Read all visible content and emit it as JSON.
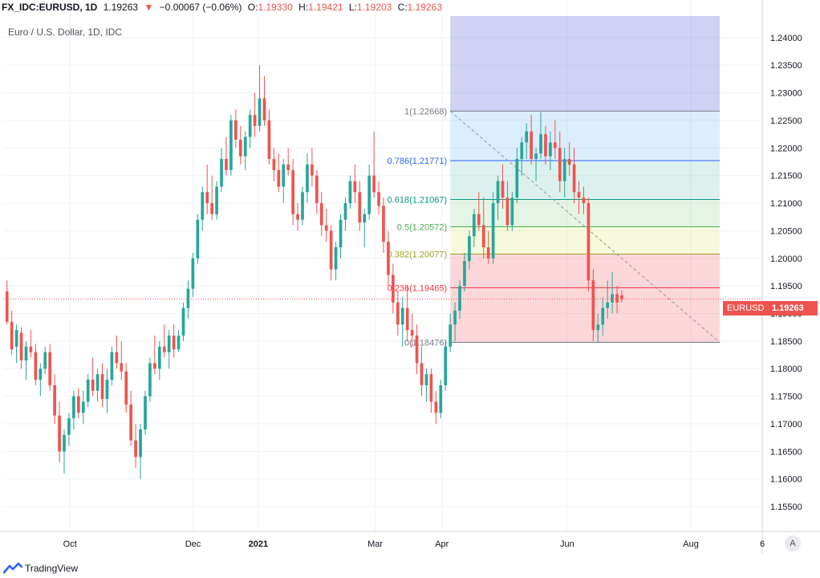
{
  "header": {
    "symbol": "FX_IDC:EURUSD, 1D",
    "last": "1.19263",
    "arrow": "▼",
    "change": "−0.00067 (−0.06%)",
    "o_label": "O:",
    "o_val": "1.19330",
    "h_label": "H:",
    "h_val": "1.19421",
    "l_label": "L:",
    "l_val": "1.19203",
    "c_label": "C:",
    "c_val": "1.19263",
    "subtitle": "Euro / U.S. Dollar, 1D, IDC"
  },
  "price_tag": {
    "symbol": "EURUSD",
    "value": "1.19263"
  },
  "auto_button": "A",
  "logo_text": "TradingView",
  "colors": {
    "up": "#26a69a",
    "down": "#ef5350",
    "grid": "#f0f3fa",
    "axis": "#131722"
  },
  "chart_data": {
    "type": "candlestick",
    "y_axis": {
      "range": [
        1.1505,
        1.2442
      ],
      "ticks": [
        "1.24000",
        "1.23500",
        "1.23000",
        "1.22500",
        "1.22000",
        "1.21500",
        "1.21000",
        "1.20500",
        "1.20000",
        "1.19500",
        "1.19000",
        "1.18500",
        "1.18000",
        "1.17500",
        "1.17000",
        "1.16500",
        "1.16000",
        "1.15500"
      ]
    },
    "x_axis": {
      "ticks": [
        {
          "label": "Oct",
          "t": 0.088
        },
        {
          "label": "Dec",
          "t": 0.25
        },
        {
          "label": "2021",
          "t": 0.336,
          "bold": true
        },
        {
          "label": "Mar",
          "t": 0.49
        },
        {
          "label": "Apr",
          "t": 0.578
        },
        {
          "label": "Jun",
          "t": 0.743
        },
        {
          "label": "Aug",
          "t": 0.906
        },
        {
          "label": "6",
          "t": 1.0
        }
      ]
    },
    "fibonacci": {
      "levels": [
        {
          "ratio": "1",
          "price": 1.22668,
          "label": "1(1.22668)",
          "color": "#787b86",
          "fill": "rgba(120,123,134,0.16)"
        },
        {
          "ratio": "0.786",
          "price": 1.21771,
          "label": "0.786(1.21771)",
          "color": "#2962ff",
          "fill": "rgba(33,150,243,0.16)"
        },
        {
          "ratio": "0.618",
          "price": 1.21067,
          "label": "0.618(1.21067)",
          "color": "#089981",
          "fill": "rgba(8,153,129,0.14)"
        },
        {
          "ratio": "0.5",
          "price": 1.20572,
          "label": "0.5(1.20572)",
          "color": "#4caf50",
          "fill": "rgba(76,175,80,0.14)"
        },
        {
          "ratio": "0.382",
          "price": 1.20077,
          "label": "0.382(1.20077)",
          "color": "#9ca31f",
          "fill": "rgba(205,220,57,0.18)"
        },
        {
          "ratio": "0.236",
          "price": 1.19465,
          "label": "0.236(1.19465)",
          "color": "#f23645",
          "fill": "rgba(242,54,69,0.20)"
        },
        {
          "ratio": "0",
          "price": 1.18476,
          "label": "0(1.18476)",
          "color": "#787b86",
          "fill": null
        }
      ],
      "extension_fill": "rgba(103,103,220,0.30)"
    },
    "candles_ohlc": [
      [
        1.194,
        1.196,
        1.188,
        1.1885
      ],
      [
        1.1885,
        1.1905,
        1.1825,
        1.1835
      ],
      [
        1.184,
        1.188,
        1.181,
        1.187
      ],
      [
        1.1865,
        1.1875,
        1.18,
        1.1815
      ],
      [
        1.1815,
        1.185,
        1.178,
        1.184
      ],
      [
        1.184,
        1.187,
        1.182,
        1.183
      ],
      [
        1.183,
        1.1845,
        1.177,
        1.178
      ],
      [
        1.178,
        1.181,
        1.175,
        1.18
      ],
      [
        1.18,
        1.184,
        1.179,
        1.183
      ],
      [
        1.183,
        1.1845,
        1.176,
        1.177
      ],
      [
        1.177,
        1.179,
        1.17,
        1.1715
      ],
      [
        1.1715,
        1.174,
        1.163,
        1.165
      ],
      [
        1.165,
        1.169,
        1.161,
        1.168
      ],
      [
        1.168,
        1.172,
        1.166,
        1.171
      ],
      [
        1.171,
        1.176,
        1.169,
        1.175
      ],
      [
        1.175,
        1.1765,
        1.171,
        1.172
      ],
      [
        1.172,
        1.176,
        1.17,
        1.174
      ],
      [
        1.174,
        1.179,
        1.173,
        1.178
      ],
      [
        1.178,
        1.182,
        1.175,
        1.176
      ],
      [
        1.176,
        1.18,
        1.174,
        1.179
      ],
      [
        1.179,
        1.181,
        1.173,
        1.1745
      ],
      [
        1.1745,
        1.18,
        1.172,
        1.178
      ],
      [
        1.178,
        1.184,
        1.177,
        1.183
      ],
      [
        1.183,
        1.186,
        1.18,
        1.181
      ],
      [
        1.181,
        1.185,
        1.178,
        1.1795
      ],
      [
        1.1795,
        1.181,
        1.172,
        1.1735
      ],
      [
        1.1735,
        1.176,
        1.166,
        1.167
      ],
      [
        1.167,
        1.17,
        1.162,
        1.164
      ],
      [
        1.164,
        1.17,
        1.16,
        1.169
      ],
      [
        1.169,
        1.176,
        1.168,
        1.175
      ],
      [
        1.175,
        1.182,
        1.174,
        1.181
      ],
      [
        1.181,
        1.186,
        1.179,
        1.18
      ],
      [
        1.18,
        1.185,
        1.178,
        1.184
      ],
      [
        1.184,
        1.188,
        1.182,
        1.183
      ],
      [
        1.183,
        1.187,
        1.18,
        1.186
      ],
      [
        1.186,
        1.188,
        1.182,
        1.1835
      ],
      [
        1.1835,
        1.187,
        1.183,
        1.186
      ],
      [
        1.186,
        1.192,
        1.185,
        1.191
      ],
      [
        1.191,
        1.196,
        1.189,
        1.1945
      ],
      [
        1.1945,
        1.201,
        1.193,
        1.2
      ],
      [
        1.2,
        1.208,
        1.199,
        1.207
      ],
      [
        1.207,
        1.213,
        1.205,
        1.212
      ],
      [
        1.212,
        1.217,
        1.208,
        1.21
      ],
      [
        1.21,
        1.215,
        1.207,
        1.208
      ],
      [
        1.208,
        1.214,
        1.207,
        1.213
      ],
      [
        1.213,
        1.22,
        1.212,
        1.218
      ],
      [
        1.218,
        1.222,
        1.215,
        1.216
      ],
      [
        1.216,
        1.226,
        1.215,
        1.225
      ],
      [
        1.225,
        1.227,
        1.22,
        1.2215
      ],
      [
        1.2215,
        1.224,
        1.217,
        1.2185
      ],
      [
        1.2185,
        1.223,
        1.216,
        1.222
      ],
      [
        1.222,
        1.227,
        1.22,
        1.226
      ],
      [
        1.226,
        1.23,
        1.222,
        1.224
      ],
      [
        1.224,
        1.235,
        1.223,
        1.229
      ],
      [
        1.229,
        1.233,
        1.224,
        1.225
      ],
      [
        1.225,
        1.227,
        1.217,
        1.218
      ],
      [
        1.218,
        1.22,
        1.214,
        1.216
      ],
      [
        1.216,
        1.219,
        1.212,
        1.213
      ],
      [
        1.213,
        1.218,
        1.21,
        1.217
      ],
      [
        1.217,
        1.22,
        1.215,
        1.216
      ],
      [
        1.216,
        1.218,
        1.206,
        1.208
      ],
      [
        1.208,
        1.21,
        1.205,
        1.207
      ],
      [
        1.207,
        1.213,
        1.206,
        1.212
      ],
      [
        1.212,
        1.219,
        1.21,
        1.217
      ],
      [
        1.217,
        1.22,
        1.213,
        1.215
      ],
      [
        1.215,
        1.216,
        1.208,
        1.21
      ],
      [
        1.21,
        1.212,
        1.204,
        1.206
      ],
      [
        1.206,
        1.209,
        1.203,
        1.205
      ],
      [
        1.205,
        1.206,
        1.196,
        1.198
      ],
      [
        1.198,
        1.203,
        1.196,
        1.202
      ],
      [
        1.202,
        1.208,
        1.2,
        1.207
      ],
      [
        1.207,
        1.211,
        1.205,
        1.21
      ],
      [
        1.21,
        1.215,
        1.209,
        1.214
      ],
      [
        1.214,
        1.217,
        1.21,
        1.212
      ],
      [
        1.212,
        1.214,
        1.205,
        1.2065
      ],
      [
        1.2065,
        1.209,
        1.202,
        1.208
      ],
      [
        1.208,
        1.217,
        1.207,
        1.215
      ],
      [
        1.215,
        1.223,
        1.211,
        1.212
      ],
      [
        1.212,
        1.214,
        1.208,
        1.2095
      ],
      [
        1.2095,
        1.211,
        1.201,
        1.203
      ],
      [
        1.203,
        1.205,
        1.195,
        1.197
      ],
      [
        1.197,
        1.199,
        1.19,
        1.192
      ],
      [
        1.192,
        1.194,
        1.186,
        1.188
      ],
      [
        1.188,
        1.193,
        1.184,
        1.191
      ],
      [
        1.191,
        1.195,
        1.185,
        1.187
      ],
      [
        1.187,
        1.19,
        1.184,
        1.186
      ],
      [
        1.186,
        1.188,
        1.179,
        1.181
      ],
      [
        1.181,
        1.184,
        1.175,
        1.177
      ],
      [
        1.177,
        1.18,
        1.174,
        1.179
      ],
      [
        1.179,
        1.18,
        1.172,
        1.174
      ],
      [
        1.174,
        1.176,
        1.17,
        1.172
      ],
      [
        1.172,
        1.178,
        1.171,
        1.177
      ],
      [
        1.177,
        1.185,
        1.176,
        1.184
      ],
      [
        1.184,
        1.19,
        1.183,
        1.188
      ],
      [
        1.188,
        1.192,
        1.185,
        1.1905
      ],
      [
        1.1905,
        1.196,
        1.189,
        1.195
      ],
      [
        1.195,
        1.201,
        1.194,
        1.1995
      ],
      [
        1.1995,
        1.205,
        1.198,
        1.204
      ],
      [
        1.204,
        1.209,
        1.202,
        1.208
      ],
      [
        1.208,
        1.212,
        1.205,
        1.206
      ],
      [
        1.206,
        1.211,
        1.2,
        1.202
      ],
      [
        1.202,
        1.205,
        1.199,
        1.2
      ],
      [
        1.2,
        1.212,
        1.199,
        1.21
      ],
      [
        1.21,
        1.215,
        1.207,
        1.214
      ],
      [
        1.214,
        1.217,
        1.209,
        1.211
      ],
      [
        1.211,
        1.214,
        1.205,
        1.206
      ],
      [
        1.206,
        1.212,
        1.205,
        1.211
      ],
      [
        1.211,
        1.22,
        1.21,
        1.218
      ],
      [
        1.218,
        1.222,
        1.215,
        1.221
      ],
      [
        1.221,
        1.2245,
        1.218,
        1.223
      ],
      [
        1.223,
        1.226,
        1.217,
        1.218
      ],
      [
        1.218,
        1.22,
        1.214,
        1.219
      ],
      [
        1.219,
        1.2265,
        1.218,
        1.2225
      ],
      [
        1.2225,
        1.224,
        1.217,
        1.2185
      ],
      [
        1.2185,
        1.223,
        1.216,
        1.221
      ],
      [
        1.221,
        1.225,
        1.218,
        1.22
      ],
      [
        1.22,
        1.223,
        1.212,
        1.214
      ],
      [
        1.214,
        1.22,
        1.211,
        1.218
      ],
      [
        1.218,
        1.221,
        1.215,
        1.217
      ],
      [
        1.217,
        1.22,
        1.21,
        1.212
      ],
      [
        1.212,
        1.214,
        1.208,
        1.211
      ],
      [
        1.211,
        1.213,
        1.208,
        1.21
      ],
      [
        1.21,
        1.211,
        1.194,
        1.196
      ],
      [
        1.196,
        1.198,
        1.185,
        1.187
      ],
      [
        1.187,
        1.19,
        1.1848,
        1.188
      ],
      [
        1.188,
        1.193,
        1.186,
        1.191
      ],
      [
        1.191,
        1.196,
        1.189,
        1.192
      ],
      [
        1.192,
        1.1975,
        1.19,
        1.1935
      ],
      [
        1.1935,
        1.195,
        1.19,
        1.192
      ],
      [
        1.1933,
        1.1942,
        1.192,
        1.1926
      ]
    ]
  }
}
